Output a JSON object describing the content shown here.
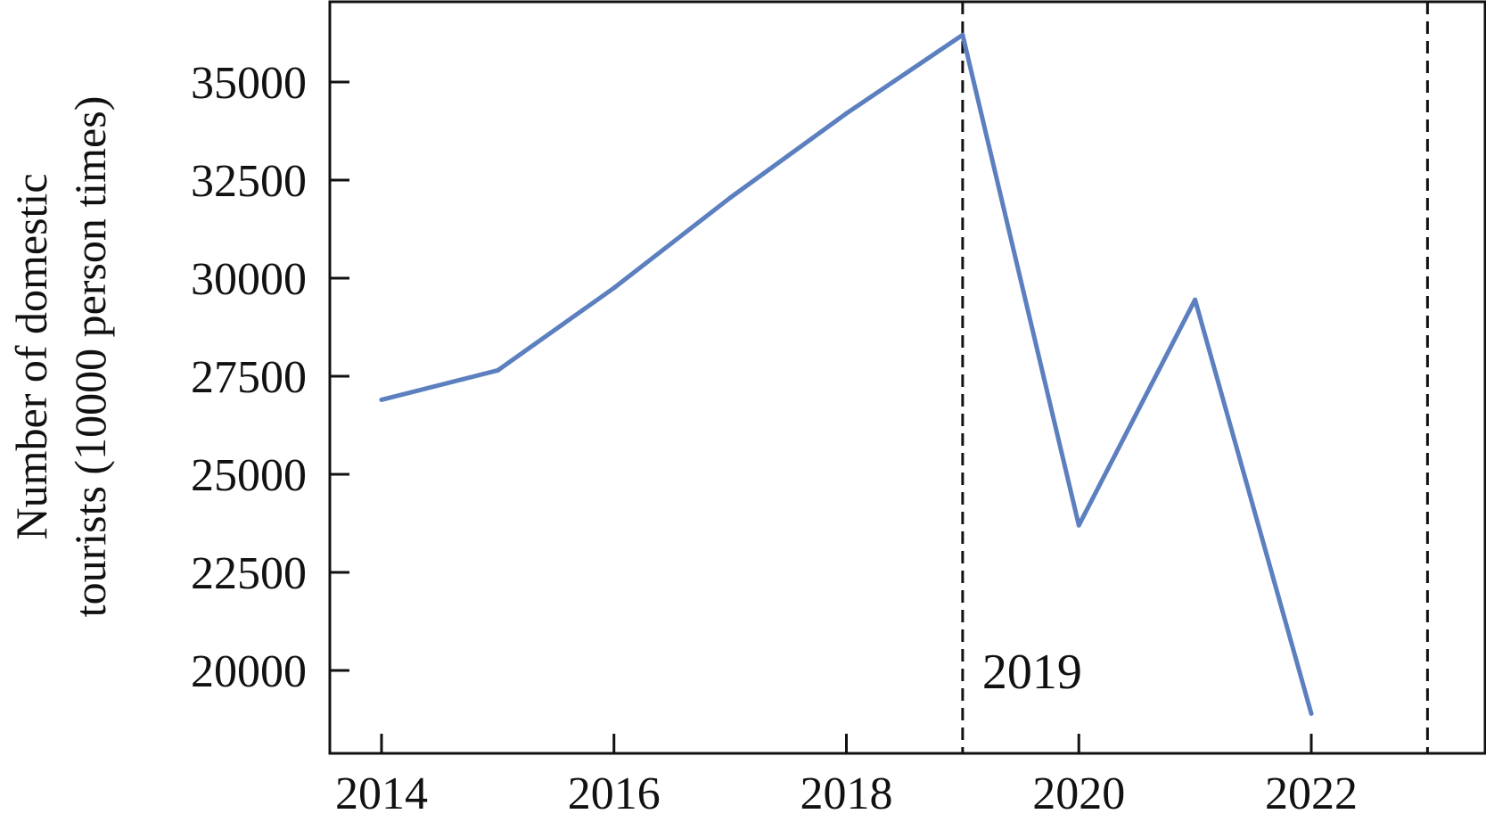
{
  "chart_data": {
    "type": "line",
    "title": "",
    "xlabel": "",
    "ylabel_lines": [
      "Number of domestic",
      "tourists (10000 person times)"
    ],
    "x": [
      2014,
      2015,
      2016,
      2017,
      2018,
      2019,
      2020,
      2021,
      2022
    ],
    "series": [
      {
        "values": [
          26900,
          27650,
          29750,
          32050,
          34200,
          36200,
          23700,
          29450,
          18900
        ]
      }
    ],
    "xlim": [
      2013.8,
      2023.2
    ],
    "ylim": [
      18000,
      37000
    ],
    "xticks": [
      2014,
      2016,
      2018,
      2020,
      2022
    ],
    "yticks": [
      20000,
      22500,
      25000,
      27500,
      30000,
      32500,
      35000
    ],
    "vlines": [
      2019,
      2023
    ],
    "annotation": {
      "text": "2019",
      "x": 2019
    },
    "grid": false,
    "line_color": "#5b7fbf",
    "axis_color": "#111111"
  }
}
